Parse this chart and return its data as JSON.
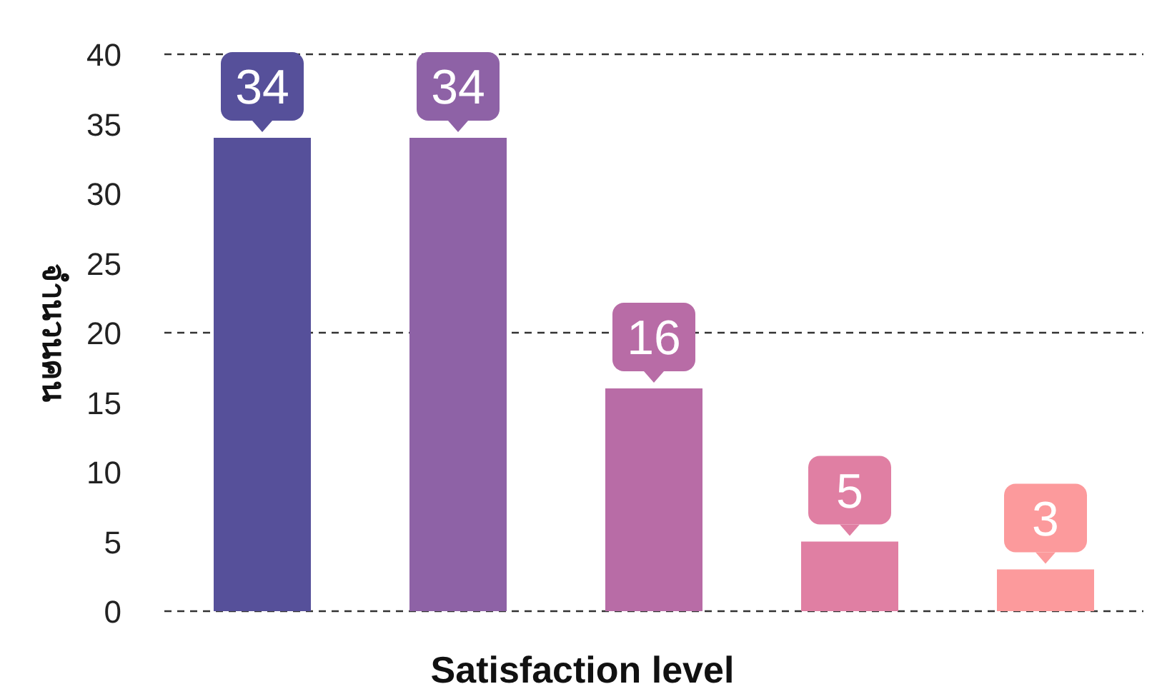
{
  "chart_data": {
    "type": "bar",
    "xlabel": "Satisfaction level",
    "ylabel": "จำนวนคน",
    "categories": [
      null,
      null,
      null,
      null,
      null
    ],
    "values": [
      34,
      34,
      16,
      5,
      3
    ],
    "colors": [
      "#56509a",
      "#8e62a6",
      "#b86ca6",
      "#e07fa3",
      "#fc9a9c"
    ],
    "ylim": [
      0,
      40
    ],
    "yticks": [
      0,
      5,
      10,
      15,
      20,
      25,
      30,
      35,
      40
    ],
    "ref_lines": [
      {
        "axis": "y",
        "value": 20,
        "color": "#333333",
        "line_style": "dashed"
      }
    ],
    "data_labels": true
  }
}
